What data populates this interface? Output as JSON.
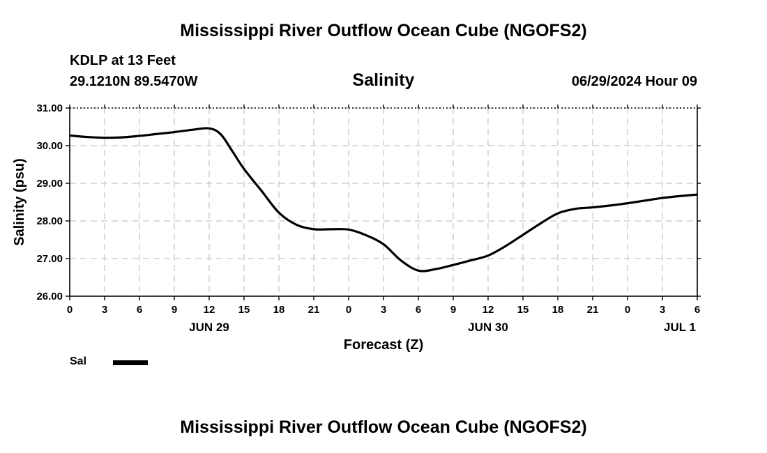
{
  "header": {
    "title": "Mississippi River Outflow Ocean Cube (NGOFS2)",
    "station": "KDLP at 13 Feet",
    "coordinates": "29.1210N  89.5470W",
    "parameter": "Salinity",
    "datetime": "06/29/2024 Hour 09"
  },
  "footer": {
    "title": "Mississippi River Outflow Ocean Cube (NGOFS2)"
  },
  "chart_data": {
    "type": "line",
    "title": "Salinity",
    "xlabel": "Forecast (Z)",
    "ylabel": "Salinity (psu)",
    "ylim": [
      26.0,
      31.0
    ],
    "xlim": [
      0,
      54
    ],
    "x_unit": "hours from 00Z JUN 29",
    "grid": true,
    "y_ticks": [
      "26.00",
      "27.00",
      "28.00",
      "29.00",
      "30.00",
      "31.00"
    ],
    "y_tick_values": [
      26,
      27,
      28,
      29,
      30,
      31
    ],
    "x_tick_labels": [
      "0",
      "3",
      "6",
      "9",
      "12",
      "15",
      "18",
      "21",
      "0",
      "3",
      "6",
      "9",
      "12",
      "15",
      "18",
      "21",
      "0",
      "3",
      "6"
    ],
    "day_labels": [
      {
        "label": "JUN 29",
        "hour": 12
      },
      {
        "label": "JUN 30",
        "hour": 36
      },
      {
        "label": "JUL 1",
        "hour": 52.5
      }
    ],
    "legend": [
      {
        "name": "Sal",
        "color": "#000000"
      }
    ],
    "legend_position": "bottom-left",
    "series": [
      {
        "name": "Sal",
        "color": "#000000",
        "x": [
          0,
          1.5,
          3,
          4.5,
          6,
          7.5,
          9,
          10.5,
          12,
          13,
          14,
          15,
          16.5,
          18,
          19.5,
          21,
          22.5,
          24,
          25.5,
          27,
          28.5,
          30,
          31.5,
          33,
          34.5,
          36,
          37.5,
          39,
          40.5,
          42,
          43.5,
          45,
          46.5,
          48,
          49.5,
          51,
          52.5,
          54
        ],
        "values": [
          30.27,
          30.23,
          30.21,
          30.22,
          30.26,
          30.31,
          30.36,
          30.42,
          30.46,
          30.3,
          29.85,
          29.38,
          28.8,
          28.22,
          27.9,
          27.78,
          27.78,
          27.77,
          27.62,
          27.38,
          26.95,
          26.68,
          26.72,
          26.83,
          26.95,
          27.08,
          27.33,
          27.63,
          27.93,
          28.2,
          28.32,
          28.36,
          28.41,
          28.47,
          28.54,
          28.61,
          28.66,
          28.7
        ]
      }
    ]
  }
}
